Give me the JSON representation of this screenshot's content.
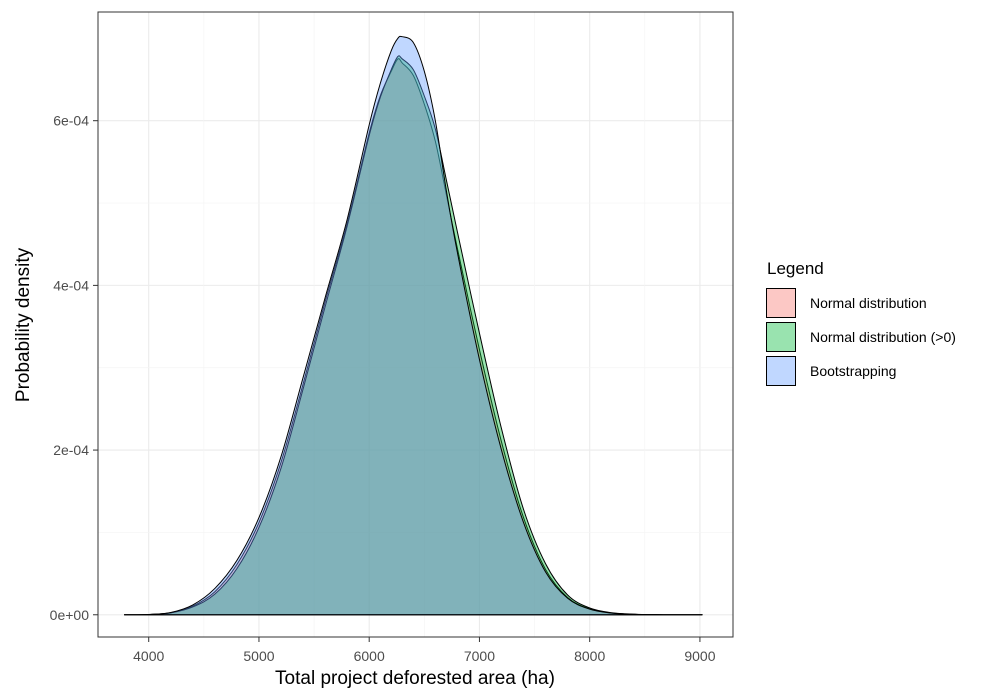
{
  "chart_data": {
    "type": "area",
    "xlabel": "Total project deforested area (ha)",
    "ylabel": "Probability density",
    "xlim": [
      3540,
      9300
    ],
    "ylim": [
      -2.7e-05,
      0.000732
    ],
    "x_ticks": [
      4000,
      5000,
      6000,
      7000,
      8000,
      9000
    ],
    "x_tick_labels": [
      "4000",
      "5000",
      "6000",
      "7000",
      "8000",
      "9000"
    ],
    "y_ticks": [
      0,
      0.0002,
      0.0004,
      0.0006
    ],
    "y_tick_labels": [
      "0e+00",
      "2e-04",
      "4e-04",
      "6e-04"
    ],
    "grid": true,
    "legend_title": "Legend",
    "legend_position": "right",
    "series": [
      {
        "name": "Normal distribution",
        "color": "#F8766D",
        "fill": "#F8766D",
        "x": [
          3780,
          4000,
          4200,
          4400,
          4600,
          4800,
          5000,
          5200,
          5400,
          5600,
          5800,
          6000,
          6100,
          6200,
          6260,
          6300,
          6400,
          6500,
          6600,
          6700,
          6800,
          7000,
          7200,
          7400,
          7600,
          7800,
          8000,
          8200,
          8400,
          8600,
          8800,
          9020
        ],
        "y": [
          0,
          3e-07,
          2.5e-06,
          1.05e-05,
          2.8e-05,
          6.1e-05,
          0.000112,
          0.000185,
          0.00028,
          0.00038,
          0.000475,
          0.000585,
          0.00063,
          0.00066,
          0.000675,
          0.00067,
          0.000655,
          0.00062,
          0.000575,
          0.00051,
          0.000445,
          0.000322,
          0.00021,
          0.000118,
          5.5e-05,
          2.1e-05,
          7.2e-06,
          2.2e-06,
          6e-07,
          1.5e-07,
          3e-08,
          0
        ]
      },
      {
        "name": "Normal distribution (>0)",
        "color": "#00BA38",
        "fill": "#00BA38",
        "x": [
          3780,
          4000,
          4200,
          4400,
          4600,
          4800,
          5000,
          5200,
          5400,
          5600,
          5800,
          6000,
          6100,
          6200,
          6260,
          6300,
          6400,
          6500,
          6600,
          6700,
          6800,
          7000,
          7200,
          7400,
          7600,
          7800,
          8000,
          8200,
          8400,
          8600,
          8800,
          9020
        ],
        "y": [
          0,
          3e-07,
          2.3e-06,
          9.5e-06,
          2.5e-05,
          5.6e-05,
          0.000106,
          0.000178,
          0.000274,
          0.000374,
          0.000472,
          0.000582,
          0.000628,
          0.000662,
          0.000678,
          0.000675,
          0.000662,
          0.00063,
          0.00059,
          0.000528,
          0.000465,
          0.000342,
          0.000226,
          0.000128,
          6.2e-05,
          2.4e-05,
          8.2e-06,
          2.5e-06,
          7e-07,
          1.7e-07,
          3e-08,
          0
        ]
      },
      {
        "name": "Bootstrapping",
        "color": "#619CFF",
        "fill": "#619CFF",
        "x": [
          3780,
          4000,
          4200,
          4400,
          4600,
          4800,
          5000,
          5200,
          5400,
          5600,
          5800,
          6000,
          6100,
          6200,
          6260,
          6300,
          6400,
          6500,
          6600,
          6700,
          6800,
          7000,
          7200,
          7400,
          7600,
          7800,
          8000,
          8200,
          8400,
          8600,
          8800,
          9020
        ],
        "y": [
          0,
          4e-07,
          2.8e-06,
          1.2e-05,
          3.2e-05,
          6.6e-05,
          0.000118,
          0.000192,
          0.000288,
          0.000385,
          0.00048,
          0.000595,
          0.000645,
          0.000685,
          0.0007,
          0.000702,
          0.000695,
          0.00066,
          0.0006,
          0.000515,
          0.00044,
          0.00031,
          0.0002,
          0.000112,
          5.2e-05,
          2e-05,
          6.8e-06,
          2e-06,
          5e-07,
          1.2e-07,
          2e-08,
          0
        ]
      }
    ]
  }
}
